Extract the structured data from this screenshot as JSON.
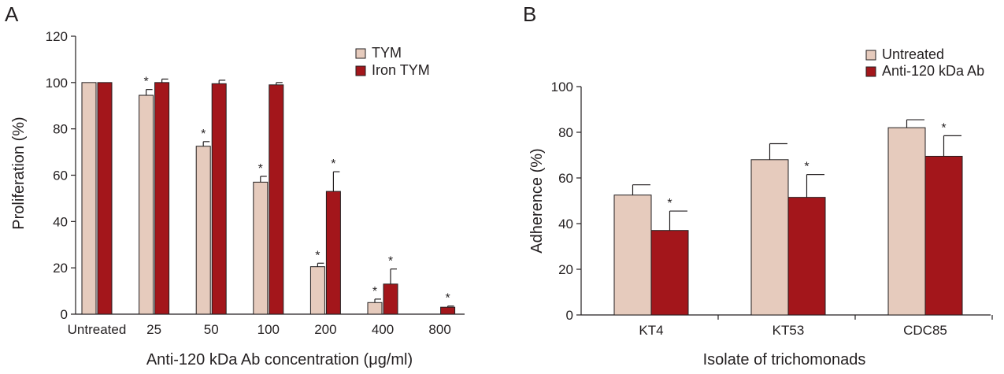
{
  "colors": {
    "series1": "#e6cbbd",
    "series2": "#a3161b",
    "axis": "#231f20",
    "star": "#231f20"
  },
  "chart_data": [
    {
      "type": "bar",
      "panel_label": "A",
      "categories": [
        "Untreated",
        "25",
        "50",
        "100",
        "200",
        "400",
        "800"
      ],
      "series": [
        {
          "name": "TYM",
          "values": [
            100,
            94.5,
            72.5,
            57,
            20.5,
            5,
            null
          ],
          "errors": [
            0,
            2.5,
            2,
            2.5,
            1.5,
            1.5,
            0
          ],
          "significant": [
            false,
            true,
            true,
            true,
            true,
            true,
            false
          ]
        },
        {
          "name": "Iron TYM",
          "values": [
            100,
            100,
            99.5,
            99,
            53,
            13,
            3
          ],
          "errors": [
            0,
            1.5,
            1.5,
            1,
            8.5,
            6.5,
            0.5
          ],
          "significant": [
            false,
            false,
            false,
            false,
            true,
            true,
            true
          ]
        }
      ],
      "xlabel": "Anti-120 kDa Ab concentration (μg/ml)",
      "ylabel": "Proliferation (%)",
      "ylim": [
        0,
        120
      ],
      "yticks": [
        0,
        20,
        40,
        60,
        80,
        100,
        120
      ],
      "legend_position": "top-right",
      "significance_marker": "*",
      "grid": false
    },
    {
      "type": "bar",
      "panel_label": "B",
      "categories": [
        "KT4",
        "KT53",
        "CDC85"
      ],
      "series": [
        {
          "name": "Untreated",
          "values": [
            52.5,
            68,
            82
          ],
          "errors": [
            4.5,
            7,
            3.5
          ],
          "significant": [
            false,
            false,
            false
          ]
        },
        {
          "name": "Anti-120 kDa Ab",
          "values": [
            37,
            51.5,
            69.5
          ],
          "errors": [
            8.5,
            10,
            9
          ],
          "significant": [
            true,
            true,
            true
          ]
        }
      ],
      "xlabel": "Isolate of trichomonads",
      "ylabel": "Adherence (%)",
      "ylim": [
        0,
        100
      ],
      "yticks": [
        0,
        20,
        40,
        60,
        80,
        100
      ],
      "legend_position": "top-right",
      "significance_marker": "*",
      "grid": false
    }
  ]
}
